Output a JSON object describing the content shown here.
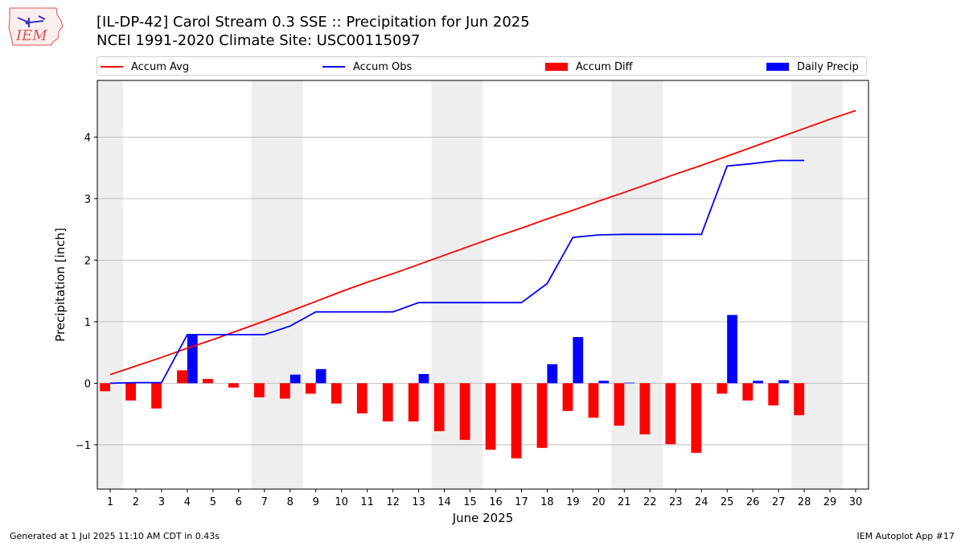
{
  "header": {
    "title_line1": "[IL-DP-42] Carol Stream 0.3 SSE :: Precipitation for Jun 2025",
    "title_line2": "NCEI 1991-2020 Climate Site: USC00115097"
  },
  "logo": {
    "text": "IEM",
    "icon": "iowa-state-map-weather-logo"
  },
  "legend": {
    "accum_avg": "Accum Avg",
    "accum_obs": "Accum Obs",
    "accum_diff": "Accum Diff",
    "daily_precip": "Daily Precip"
  },
  "footer": {
    "left": "Generated at 1 Jul 2025 11:10 AM CDT in 0.43s",
    "right": "IEM Autoplot App #17"
  },
  "colors": {
    "accum_avg": "#ff0000",
    "accum_obs": "#0000ff",
    "accum_diff": "#ff0000",
    "daily_precip": "#0000ff",
    "weekend_shade": "#eeeeee",
    "grid": "#b0b0b0"
  },
  "chart_data": {
    "type": "bar",
    "xlabel": "June 2025",
    "ylabel": "Precipitation [inch]",
    "ylim": [
      -1.72,
      4.92
    ],
    "xlim": [
      0.5,
      30.5
    ],
    "yticks": [
      -1,
      0,
      1,
      2,
      3,
      4
    ],
    "ytick_labels": [
      "−1",
      "0",
      "1",
      "2",
      "3",
      "4"
    ],
    "days": [
      1,
      2,
      3,
      4,
      5,
      6,
      7,
      8,
      9,
      10,
      11,
      12,
      13,
      14,
      15,
      16,
      17,
      18,
      19,
      20,
      21,
      22,
      23,
      24,
      25,
      26,
      27,
      28,
      29,
      30
    ],
    "shaded_days": [
      1,
      7,
      8,
      14,
      15,
      21,
      22,
      28,
      29
    ],
    "grid": true,
    "legend_position": "top",
    "series": [
      {
        "name": "Accum Avg",
        "kind": "line",
        "color": "#ff0000",
        "values": [
          0.14,
          0.28,
          0.42,
          0.57,
          0.71,
          0.86,
          1.01,
          1.17,
          1.33,
          1.49,
          1.64,
          1.78,
          1.93,
          2.08,
          2.23,
          2.38,
          2.52,
          2.67,
          2.81,
          2.96,
          3.1,
          3.25,
          3.4,
          3.54,
          3.69,
          3.84,
          3.99,
          4.14,
          4.29,
          4.43
        ]
      },
      {
        "name": "Accum Obs",
        "kind": "line",
        "color": "#0000ff",
        "values": [
          0.0,
          0.01,
          0.01,
          0.79,
          0.79,
          0.79,
          0.79,
          0.93,
          1.16,
          1.16,
          1.16,
          1.16,
          1.31,
          1.31,
          1.31,
          1.31,
          1.31,
          1.62,
          2.37,
          2.41,
          2.42,
          2.42,
          2.42,
          2.42,
          3.53,
          3.57,
          3.62,
          3.62
        ]
      },
      {
        "name": "Accum Diff",
        "kind": "bar",
        "color": "#ff0000",
        "values": [
          -0.13,
          -0.28,
          -0.41,
          0.21,
          0.07,
          -0.07,
          -0.23,
          -0.25,
          -0.17,
          -0.33,
          -0.49,
          -0.62,
          -0.62,
          -0.78,
          -0.92,
          -1.08,
          -1.22,
          -1.05,
          -0.45,
          -0.56,
          -0.69,
          -0.83,
          -0.99,
          -1.13,
          -0.17,
          -0.28,
          -0.36,
          -0.52
        ]
      },
      {
        "name": "Daily Precip",
        "kind": "bar",
        "color": "#0000ff",
        "values": [
          0.0,
          0.01,
          0.0,
          0.78,
          0.0,
          0.0,
          0.0,
          0.14,
          0.23,
          0.0,
          0.0,
          0.0,
          0.15,
          0.0,
          0.0,
          0.0,
          0.0,
          0.31,
          0.75,
          0.04,
          0.01,
          0.0,
          0.0,
          0.0,
          1.11,
          0.04,
          0.05,
          0.0
        ]
      }
    ]
  }
}
